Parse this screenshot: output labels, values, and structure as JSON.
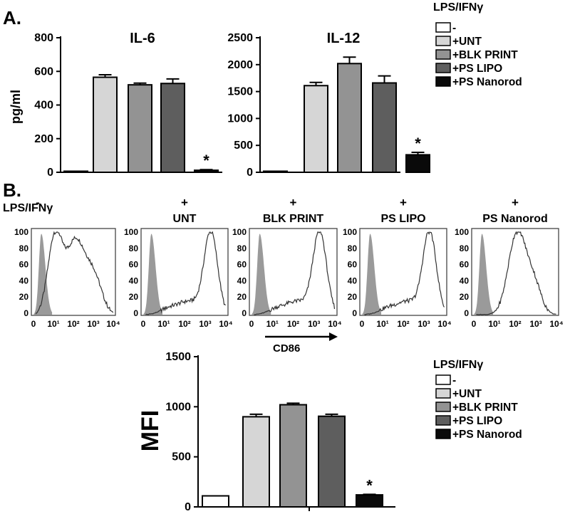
{
  "panel_a_label": "A.",
  "panel_b_label": "B.",
  "legend_top": {
    "title": "LPS/IFNγ",
    "entries": [
      "-",
      "+UNT",
      "+BLK PRINT",
      "+PS LIPO",
      "+PS Nanorod"
    ]
  },
  "legend_bottom": {
    "title": "LPS/IFNγ",
    "entries": [
      "-",
      "+UNT",
      "+BLK PRINT",
      "+PS LIPO",
      "+PS Nanorod"
    ]
  },
  "colors": {
    "none": "#ffffff",
    "unt": "#d6d6d6",
    "blk_print": "#939393",
    "ps_lipo": "#5e5e5e",
    "ps_nanorod": "#0a0a0a",
    "histogram_fill": "#9a9a9a"
  },
  "flow": {
    "row_label": "LPS/IFNγ",
    "panels": [
      {
        "sign": "-",
        "label": ""
      },
      {
        "sign": "+",
        "label": "UNT"
      },
      {
        "sign": "+",
        "label": "BLK PRINT"
      },
      {
        "sign": "+",
        "label": "PS LIPO"
      },
      {
        "sign": "+",
        "label": "PS Nanorod"
      }
    ],
    "yticks": [
      "100",
      "80",
      "60",
      "40",
      "20",
      "0"
    ],
    "xticks": [
      "0",
      "10¹",
      "10²",
      "10³",
      "10⁴"
    ],
    "xlabel": "CD86"
  },
  "chart_data": [
    {
      "type": "bar",
      "title": "IL-6",
      "ylabel": "pg/ml",
      "xlabel": "",
      "categories": [
        "-",
        "+UNT",
        "+BLK PRINT",
        "+PS LIPO",
        "+PS Nanorod"
      ],
      "values": [
        0,
        565,
        520,
        528,
        12
      ],
      "errors": [
        0,
        15,
        10,
        27,
        4
      ],
      "significance": [
        "",
        "",
        "",
        "",
        "*"
      ],
      "ylim": [
        0,
        800
      ],
      "yticks": [
        0,
        200,
        400,
        600,
        800
      ]
    },
    {
      "type": "bar",
      "title": "IL-12",
      "ylabel": "",
      "xlabel": "",
      "categories": [
        "-",
        "+UNT",
        "+BLK PRINT",
        "+PS LIPO",
        "+PS Nanorod"
      ],
      "values": [
        5,
        1610,
        2020,
        1660,
        325
      ],
      "errors": [
        0,
        60,
        120,
        130,
        45
      ],
      "significance": [
        "",
        "",
        "",
        "",
        "*"
      ],
      "ylim": [
        0,
        2500
      ],
      "yticks": [
        0,
        500,
        1000,
        1500,
        2000,
        2500
      ]
    },
    {
      "type": "bar",
      "title": "",
      "ylabel": "MFI",
      "xlabel": "",
      "categories": [
        "-",
        "+UNT",
        "+BLK PRINT",
        "+PS LIPO",
        "+PS Nanorod"
      ],
      "values": [
        110,
        900,
        1020,
        905,
        120
      ],
      "errors": [
        0,
        25,
        15,
        20,
        5
      ],
      "significance": [
        "",
        "",
        "",
        "",
        "*"
      ],
      "ylim": [
        0,
        1500
      ],
      "yticks": [
        0,
        500,
        1000,
        1500
      ]
    }
  ]
}
